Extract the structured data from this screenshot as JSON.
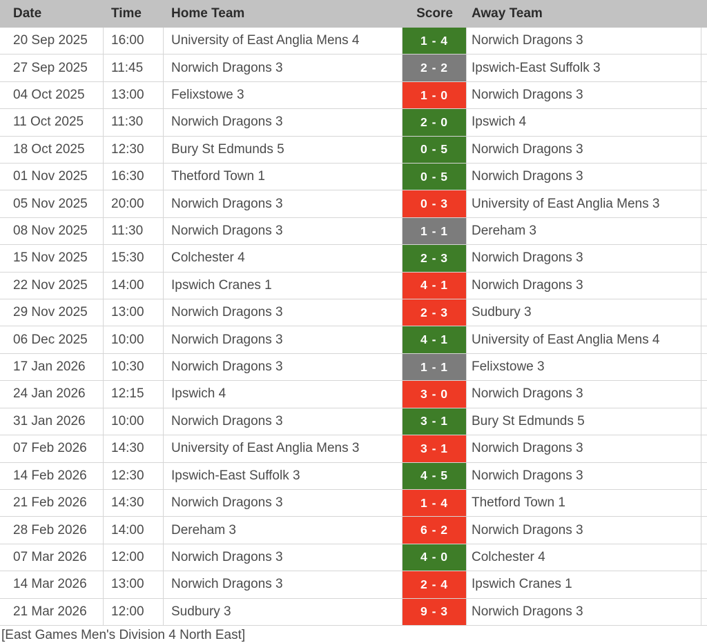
{
  "table": {
    "columns": {
      "date": "Date",
      "time": "Time",
      "home": "Home Team",
      "score": "Score",
      "away": "Away Team"
    },
    "result_colors": {
      "win": "#3e7d28",
      "draw": "#7c7c7c",
      "loss": "#ee3a25"
    },
    "rows": [
      {
        "date": "20 Sep 2025",
        "time": "16:00",
        "home": "University of East Anglia Mens 4",
        "score": "1 - 4",
        "result": "win",
        "away": "Norwich Dragons 3"
      },
      {
        "date": "27 Sep 2025",
        "time": "11:45",
        "home": "Norwich Dragons 3",
        "score": "2 - 2",
        "result": "draw",
        "away": "Ipswich-East Suffolk 3"
      },
      {
        "date": "04 Oct 2025",
        "time": "13:00",
        "home": "Felixstowe 3",
        "score": "1 - 0",
        "result": "loss",
        "away": "Norwich Dragons 3"
      },
      {
        "date": "11 Oct 2025",
        "time": "11:30",
        "home": "Norwich Dragons 3",
        "score": "2 - 0",
        "result": "win",
        "away": "Ipswich 4"
      },
      {
        "date": "18 Oct 2025",
        "time": "12:30",
        "home": "Bury St Edmunds 5",
        "score": "0 - 5",
        "result": "win",
        "away": "Norwich Dragons 3"
      },
      {
        "date": "01 Nov 2025",
        "time": "16:30",
        "home": "Thetford Town 1",
        "score": "0 - 5",
        "result": "win",
        "away": "Norwich Dragons 3"
      },
      {
        "date": "05 Nov 2025",
        "time": "20:00",
        "home": "Norwich Dragons 3",
        "score": "0 - 3",
        "result": "loss",
        "away": "University of East Anglia Mens 3"
      },
      {
        "date": "08 Nov 2025",
        "time": "11:30",
        "home": "Norwich Dragons 3",
        "score": "1 - 1",
        "result": "draw",
        "away": "Dereham 3"
      },
      {
        "date": "15 Nov 2025",
        "time": "15:30",
        "home": "Colchester 4",
        "score": "2 - 3",
        "result": "win",
        "away": "Norwich Dragons 3"
      },
      {
        "date": "22 Nov 2025",
        "time": "14:00",
        "home": "Ipswich Cranes 1",
        "score": "4 - 1",
        "result": "loss",
        "away": "Norwich Dragons 3"
      },
      {
        "date": "29 Nov 2025",
        "time": "13:00",
        "home": "Norwich Dragons 3",
        "score": "2 - 3",
        "result": "loss",
        "away": "Sudbury 3"
      },
      {
        "date": "06 Dec 2025",
        "time": "10:00",
        "home": "Norwich Dragons 3",
        "score": "4 - 1",
        "result": "win",
        "away": "University of East Anglia Mens 4"
      },
      {
        "date": "17 Jan 2026",
        "time": "10:30",
        "home": "Norwich Dragons 3",
        "score": "1 - 1",
        "result": "draw",
        "away": "Felixstowe 3"
      },
      {
        "date": "24 Jan 2026",
        "time": "12:15",
        "home": "Ipswich 4",
        "score": "3 - 0",
        "result": "loss",
        "away": "Norwich Dragons 3"
      },
      {
        "date": "31 Jan 2026",
        "time": "10:00",
        "home": "Norwich Dragons 3",
        "score": "3 - 1",
        "result": "win",
        "away": "Bury St Edmunds 5"
      },
      {
        "date": "07 Feb 2026",
        "time": "14:30",
        "home": "University of East Anglia Mens 3",
        "score": "3 - 1",
        "result": "loss",
        "away": "Norwich Dragons 3"
      },
      {
        "date": "14 Feb 2026",
        "time": "12:30",
        "home": "Ipswich-East Suffolk 3",
        "score": "4 - 5",
        "result": "win",
        "away": "Norwich Dragons 3"
      },
      {
        "date": "21 Feb 2026",
        "time": "14:30",
        "home": "Norwich Dragons 3",
        "score": "1 - 4",
        "result": "loss",
        "away": "Thetford Town 1"
      },
      {
        "date": "28 Feb 2026",
        "time": "14:00",
        "home": "Dereham 3",
        "score": "6 - 2",
        "result": "loss",
        "away": "Norwich Dragons 3"
      },
      {
        "date": "07 Mar 2026",
        "time": "12:00",
        "home": "Norwich Dragons 3",
        "score": "4 - 0",
        "result": "win",
        "away": "Colchester 4"
      },
      {
        "date": "14 Mar 2026",
        "time": "13:00",
        "home": "Norwich Dragons 3",
        "score": "2 - 4",
        "result": "loss",
        "away": "Ipswich Cranes 1"
      },
      {
        "date": "21 Mar 2026",
        "time": "12:00",
        "home": "Sudbury 3",
        "score": "9 - 3",
        "result": "loss",
        "away": "Norwich Dragons 3"
      }
    ]
  },
  "footer": {
    "caption": "[East Games Men's Division 4 North East]"
  }
}
